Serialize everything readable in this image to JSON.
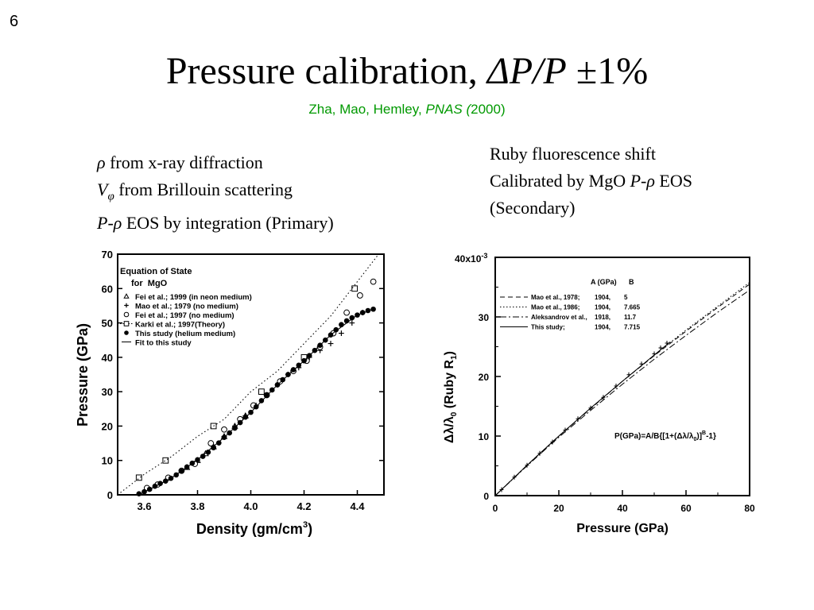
{
  "slide": {
    "number": "6",
    "title_prefix": "Pressure calibration, ",
    "title_italic": "ΔP/P",
    "title_suffix": " ±1%",
    "citation_authors": "Zha, Mao, Hemley,  ",
    "citation_journal": "PNAS (",
    "citation_year": "2000)",
    "left_text": {
      "line1_symbol": "ρ",
      "line1_text": " from x-ray diffraction",
      "line2_symbol": "V",
      "line2_sub": "φ",
      "line2_text": " from Brillouin scattering",
      "line3_symbol": "P-ρ",
      "line3_text": " EOS by integration (Primary)"
    },
    "right_text": {
      "line1": "Ruby fluorescence shift",
      "line2_prefix": "Calibrated by MgO ",
      "line2_symbol": "P-ρ",
      "line2_suffix": " EOS",
      "line3": "(Secondary)"
    }
  },
  "chart_data": [
    {
      "type": "scatter",
      "title": "Equation of State",
      "subtitle": "for  MgO",
      "xlabel": "Density (gm/cm",
      "xlabel_sup": "3",
      "xlabel_end": ")",
      "ylabel": "Pressure (GPa)",
      "xlim": [
        3.5,
        4.5
      ],
      "ylim": [
        0,
        70
      ],
      "xticks": [
        "3.6",
        "3.8",
        "4.0",
        "4.2",
        "4.4"
      ],
      "yticks": [
        "0",
        "10",
        "20",
        "30",
        "40",
        "50",
        "60",
        "70"
      ],
      "legend_position": "top-left",
      "series": [
        {
          "name": "Fei et al.; 1999 (in neon medium)",
          "marker": "triangle",
          "x": [
            3.76,
            3.8,
            3.83,
            3.86,
            3.9,
            3.94,
            3.98
          ],
          "y": [
            8,
            10,
            12,
            14,
            17,
            20,
            23
          ]
        },
        {
          "name": "Mao et al.; 1979 (no medium)",
          "marker": "plus",
          "x": [
            3.86,
            3.9,
            3.94,
            3.98,
            4.02,
            4.06,
            4.1,
            4.14,
            4.18,
            4.22,
            4.26,
            4.3,
            4.34,
            4.38,
            4.42
          ],
          "y": [
            14,
            17,
            20,
            23,
            26,
            29,
            32,
            35,
            37,
            40,
            42,
            44,
            47,
            50,
            53
          ]
        },
        {
          "name": "Fei et al.; 1997 (no medium)",
          "marker": "circle-open",
          "x": [
            3.61,
            3.65,
            3.69,
            3.74,
            3.79,
            3.85,
            3.9,
            3.96,
            4.01,
            4.06,
            4.11,
            4.16,
            4.21,
            4.26,
            4.31,
            4.36,
            4.41,
            4.46
          ],
          "y": [
            2,
            3,
            5,
            7,
            9,
            15,
            19,
            22,
            26,
            29,
            33,
            36,
            39,
            43,
            47,
            53,
            58,
            62
          ]
        },
        {
          "name": "Karki et al.; 1997(Theory)",
          "marker": "square-open",
          "x": [
            3.58,
            3.68,
            3.86,
            4.04,
            4.2,
            4.39
          ],
          "y": [
            5,
            10,
            20,
            30,
            40,
            60
          ]
        },
        {
          "name": "This study (helium medium)",
          "marker": "circle-filled",
          "x": [
            3.58,
            3.6,
            3.62,
            3.64,
            3.66,
            3.68,
            3.7,
            3.72,
            3.74,
            3.76,
            3.78,
            3.8,
            3.82,
            3.84,
            3.86,
            3.88,
            3.9,
            3.92,
            3.94,
            3.96,
            3.98,
            4.0,
            4.02,
            4.04,
            4.06,
            4.08,
            4.1,
            4.12,
            4.14,
            4.16,
            4.18,
            4.2,
            4.22,
            4.24,
            4.26,
            4.28,
            4.3,
            4.32,
            4.34,
            4.36,
            4.38,
            4.4,
            4.42,
            4.44,
            4.46
          ],
          "y": [
            0.3,
            0.9,
            1.6,
            2.5,
            3.3,
            4.0,
            4.8,
            5.8,
            6.9,
            8.1,
            9.2,
            10.2,
            11.2,
            12.4,
            13.7,
            15.1,
            16.7,
            18.0,
            19.4,
            21.0,
            22.6,
            24.0,
            25.6,
            27.4,
            29.0,
            30.5,
            32.0,
            33.5,
            35.0,
            36.4,
            37.7,
            39.0,
            40.5,
            42.0,
            43.5,
            45.0,
            46.5,
            48.0,
            49.5,
            50.6,
            51.5,
            52.3,
            53.0,
            53.6,
            54.0
          ]
        },
        {
          "name": "Fit to this study",
          "marker": "line",
          "x": [
            3.58,
            3.7,
            3.8,
            3.9,
            4.0,
            4.1,
            4.2,
            4.3,
            4.4,
            4.46
          ],
          "y": [
            0,
            4.8,
            10.2,
            16.7,
            24.0,
            32.0,
            39.0,
            46.5,
            52.3,
            54.0
          ]
        },
        {
          "name": "",
          "marker": "dotted-line",
          "x": [
            3.5,
            3.6,
            3.7,
            3.8,
            3.9,
            4.0,
            4.1,
            4.2,
            4.3,
            4.4,
            4.48
          ],
          "y": [
            0,
            6,
            11,
            17,
            22,
            30,
            36,
            44,
            52,
            62,
            70
          ]
        }
      ]
    },
    {
      "type": "line",
      "ylabel_prefix": "Δλ/λ",
      "ylabel_sub0": "0",
      "ylabel_mid": " (Ruby R",
      "ylabel_sub1": "1",
      "ylabel_end": ")",
      "xlabel": "Pressure (GPa)",
      "y_multiplier": "40x10",
      "y_multiplier_exp": "-3",
      "xlim": [
        0,
        80
      ],
      "ylim": [
        0,
        40
      ],
      "xticks": [
        "0",
        "20",
        "40",
        "60",
        "80"
      ],
      "yticks": [
        "0",
        "10",
        "20",
        "30"
      ],
      "legend_header_a": "A (GPa)",
      "legend_header_b": "B",
      "legend_position": "top-left",
      "formula_main": "P(GPa)=A/B{[1+(Δλ/λ",
      "formula_sub": "0",
      "formula_mid": ")]",
      "formula_sup": "B",
      "formula_end": "-1}",
      "series": [
        {
          "name": "Mao et al., 1978;",
          "A": "1904,",
          "B": "5",
          "style": "dashed",
          "x": [
            0,
            10,
            20,
            30,
            40,
            50,
            60,
            70,
            80
          ],
          "y": [
            0,
            5.1,
            10.0,
            14.6,
            19.2,
            23.5,
            27.6,
            31.6,
            35.5
          ]
        },
        {
          "name": "Mao et al., 1986;",
          "A": "1904,",
          "B": "7.665",
          "style": "dotted",
          "x": [
            0,
            10,
            20,
            30,
            40,
            50,
            60,
            70,
            80
          ],
          "y": [
            0,
            5.1,
            10.0,
            14.7,
            19.2,
            23.6,
            27.8,
            31.8,
            35.8
          ]
        },
        {
          "name": "Aleksandrov et al.,",
          "A": "1918,",
          "B": "11.7",
          "style": "dashdot",
          "x": [
            0,
            10,
            20,
            30,
            40,
            50,
            60,
            70,
            80
          ],
          "y": [
            0,
            5.0,
            9.8,
            14.3,
            18.7,
            22.9,
            26.9,
            30.8,
            34.5
          ]
        },
        {
          "name": "This study;",
          "A": "1904,",
          "B": "7.715",
          "style": "solid",
          "x": [
            0,
            10,
            20,
            30,
            40,
            50,
            55
          ],
          "y": [
            0,
            5.1,
            10.0,
            14.7,
            19.2,
            23.6,
            25.8
          ]
        },
        {
          "name": "",
          "marker": "data-points",
          "x": [
            2,
            6,
            10,
            14,
            18,
            22,
            26,
            30,
            34,
            38,
            42,
            46,
            50,
            52,
            54
          ],
          "y": [
            1.0,
            3.1,
            5.1,
            7.1,
            9.0,
            11.0,
            12.9,
            14.7,
            16.5,
            18.4,
            20.3,
            22.1,
            23.8,
            24.8,
            25.6
          ]
        }
      ]
    }
  ]
}
